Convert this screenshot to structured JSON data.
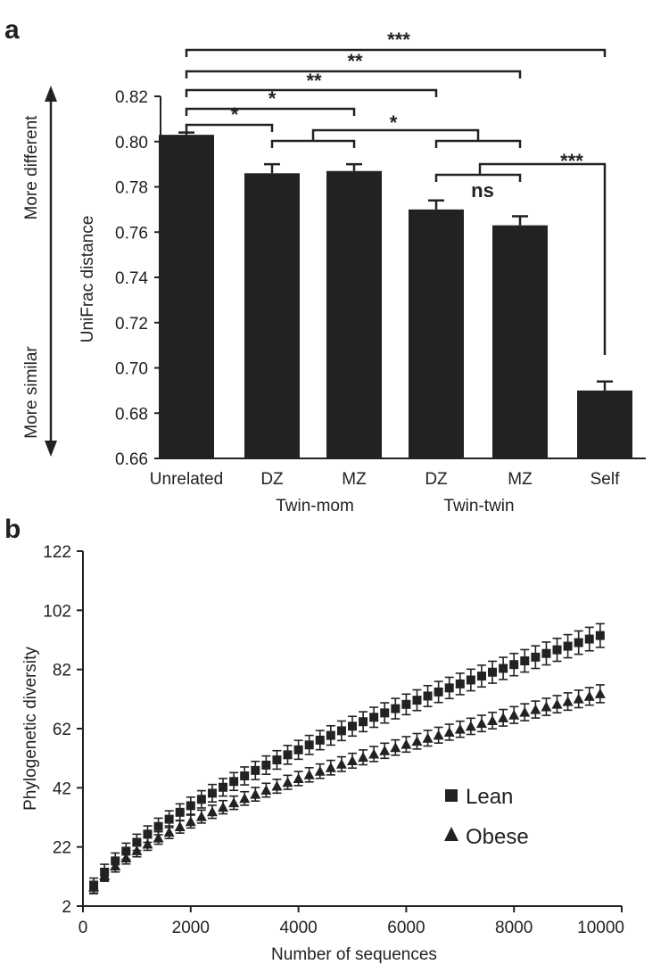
{
  "chart_data": [
    {
      "type": "bar",
      "panel_label": "a",
      "ylabel": "UniFrac distance",
      "ylim": [
        0.66,
        0.82
      ],
      "yticks": [
        "0.82",
        "0.80",
        "0.78",
        "0.76",
        "0.74",
        "0.72",
        "0.70",
        "0.68",
        "0.66"
      ],
      "ytick_values": [
        0.82,
        0.8,
        0.78,
        0.76,
        0.74,
        0.72,
        0.7,
        0.68,
        0.66
      ],
      "categories": [
        "Unrelated",
        "DZ",
        "MZ",
        "DZ",
        "MZ",
        "Self"
      ],
      "values": [
        0.803,
        0.786,
        0.787,
        0.77,
        0.763,
        0.69
      ],
      "errors": [
        0.001,
        0.004,
        0.003,
        0.004,
        0.004,
        0.004
      ],
      "group_labels": [
        "Twin-mom",
        "Twin-twin"
      ],
      "side_labels": {
        "top": "More different",
        "bottom": "More similar"
      },
      "significance": [
        "***",
        "**",
        "**",
        "*",
        "*",
        "*",
        "ns",
        "***"
      ],
      "bar_color": "#222222"
    },
    {
      "type": "scatter",
      "panel_label": "b",
      "xlabel": "Number of sequences",
      "ylabel": "Phylogenetic diversity",
      "xlim": [
        0,
        10000
      ],
      "ylim": [
        2,
        122
      ],
      "xticks": [
        "0",
        "2000",
        "4000",
        "6000",
        "8000",
        "10000"
      ],
      "xtick_values": [
        0,
        2000,
        4000,
        6000,
        8000,
        10000
      ],
      "yticks": [
        "122",
        "102",
        "82",
        "62",
        "42",
        "22",
        "2"
      ],
      "ytick_values": [
        122,
        102,
        82,
        62,
        42,
        22,
        2
      ],
      "series": [
        {
          "name": "Lean",
          "marker": "square",
          "a": 0.3505,
          "b": 0.6092,
          "err": 4.0
        },
        {
          "name": "Obese",
          "marker": "triangle",
          "a": 0.4285,
          "b": 0.5615,
          "err": 3.0
        }
      ],
      "x_start": 200,
      "x_step": 200,
      "x_end": 9600
    }
  ]
}
